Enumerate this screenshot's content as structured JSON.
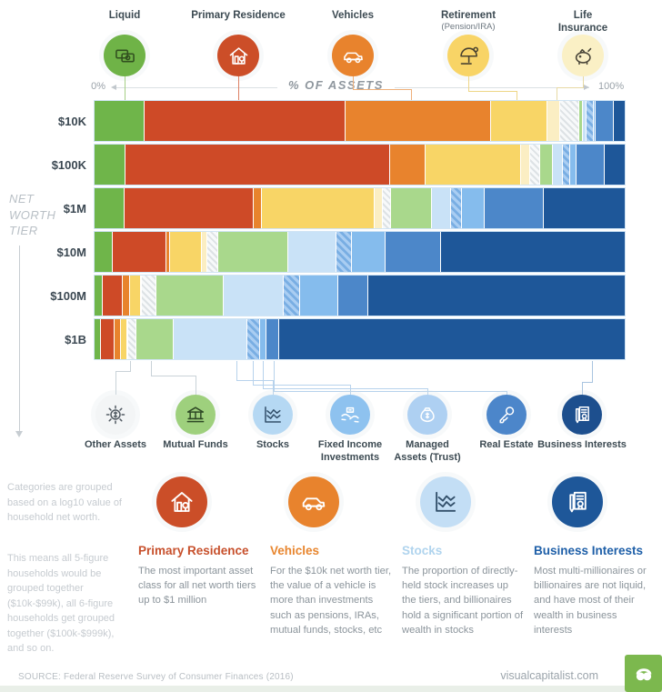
{
  "chart_data": {
    "type": "bar",
    "stacked": true,
    "orientation": "horizontal",
    "title": "% OF ASSETS",
    "ylabel": "NET WORTH TIER",
    "xlim": [
      0,
      100
    ],
    "categories": [
      "$10K",
      "$100K",
      "$1M",
      "$10M",
      "$100M",
      "$1B"
    ],
    "series": [
      {
        "name": "Liquid",
        "color": "#6fb54a",
        "values": [
          9.4,
          5.8,
          5.6,
          3.5,
          1.5,
          1.2
        ]
      },
      {
        "name": "Primary Residence",
        "color": "#ce4a27",
        "values": [
          38.0,
          49.9,
          24.4,
          10.1,
          3.8,
          2.6
        ]
      },
      {
        "name": "Vehicles",
        "color": "#e8832d",
        "values": [
          27.4,
          6.7,
          1.5,
          0.7,
          1.4,
          1.2
        ]
      },
      {
        "name": "Retirement (Pension/IRA)",
        "color": "#f8d566",
        "values": [
          10.6,
          18.0,
          21.4,
          6.0,
          2.0,
          1.2
        ]
      },
      {
        "name": "Life Insurance",
        "color": "#fbeec3",
        "values": [
          2.4,
          1.7,
          1.4,
          1.0,
          0.3,
          0.2
        ]
      },
      {
        "name": "Other Assets",
        "color": "#f2f4f6",
        "pattern": "hatch-gray",
        "values": [
          3.6,
          2.0,
          1.7,
          2.0,
          2.6,
          1.5
        ]
      },
      {
        "name": "Mutual Funds",
        "color": "#a9d88c",
        "values": [
          0.7,
          2.4,
          7.7,
          13.3,
          12.8,
          7.0
        ]
      },
      {
        "name": "Stocks",
        "color": "#c9e2f7",
        "values": [
          0.7,
          1.9,
          3.6,
          9.0,
          11.3,
          14.0
        ]
      },
      {
        "name": "Fixed Income Investments",
        "color": "#7fb2e6",
        "pattern": "hatch-blue",
        "values": [
          1.4,
          1.4,
          2.0,
          3.0,
          3.0,
          2.4
        ]
      },
      {
        "name": "Managed Assets (Trust)",
        "color": "#85bced",
        "values": [
          0.4,
          1.2,
          4.3,
          6.3,
          7.2,
          1.2
        ]
      },
      {
        "name": "Real Estate",
        "color": "#4c87c9",
        "values": [
          3.4,
          5.3,
          11.1,
          10.4,
          5.8,
          2.4
        ]
      },
      {
        "name": "Business Interests",
        "color": "#1e5799",
        "values": [
          2.0,
          3.7,
          15.3,
          34.7,
          48.3,
          65.1
        ]
      }
    ]
  },
  "axis": {
    "left": "0%",
    "center": "% OF ASSETS",
    "right": "100%"
  },
  "side": {
    "label": "NET\nWORTH\nTIER"
  },
  "top_legend": [
    {
      "label": "Liquid",
      "icon": "money-icon",
      "circle": "#6fb347",
      "stroke": "#31501f"
    },
    {
      "label": "Primary Residence",
      "icon": "house-icon",
      "circle": "#cc4e28",
      "stroke": "#ffffff"
    },
    {
      "label": "Vehicles",
      "icon": "car-icon",
      "circle": "#e8832d",
      "stroke": "#ffffff"
    },
    {
      "label": "Retirement",
      "sublabel": "(Pension/IRA)",
      "icon": "umbrella-icon",
      "circle": "#f8d466",
      "stroke": "#4a4330"
    },
    {
      "label": "Life\nInsurance",
      "icon": "piggy-icon",
      "circle": "#faf0c5",
      "stroke": "#4a4639"
    }
  ],
  "bottom_legend": [
    {
      "label": "Other Assets",
      "icon": "dollar-network-icon",
      "circle": "#f3f5f6",
      "stroke": "#525b63"
    },
    {
      "label": "Mutual Funds",
      "icon": "bank-icon",
      "circle": "#9ed07d",
      "stroke": "#2f4a26"
    },
    {
      "label": "Stocks",
      "icon": "chart-icon",
      "circle": "#b5d8f3",
      "stroke": "#33506b"
    },
    {
      "label": "Fixed Income\nInvestments",
      "icon": "hands-money-icon",
      "circle": "#8ec2ef",
      "stroke": "#ffffff"
    },
    {
      "label": "Managed\nAssets (Trust)",
      "icon": "money-bag-icon",
      "circle": "#aed0f2",
      "stroke": "#ffffff"
    },
    {
      "label": "Real Estate",
      "icon": "key-icon",
      "circle": "#4c86ca",
      "stroke": "#ffffff"
    },
    {
      "label": "Business Interests",
      "icon": "contract-icon",
      "circle": "#1d4f8e",
      "stroke": "#ffffff"
    }
  ],
  "notes": {
    "para1": "Categories are grouped based on a log10 value of household net worth.",
    "para2": "This means all 5-figure households would be grouped together ($10k-$99k), all 6-figure households get grouped together ($100k-$999k), and so on."
  },
  "callouts": [
    {
      "title": "Primary Residence",
      "title_color": "#c7502c",
      "circle": "#cb4e28",
      "stroke": "#ffffff",
      "icon": "house-icon",
      "body": "The most important asset class for all net worth tiers up to $1 million"
    },
    {
      "title": "Vehicles",
      "title_color": "#e8862f",
      "circle": "#e8832d",
      "stroke": "#ffffff",
      "icon": "car-icon",
      "body": "For the $10k net worth tier, the value of a vehicle is more than investments such as pensions, IRAs, mutual funds, stocks, etc"
    },
    {
      "title": "Stocks",
      "title_color": "#b0d4ee",
      "circle": "#c3def5",
      "stroke": "#33506b",
      "icon": "chart-icon",
      "body": "The proportion of directly-held stock increases up the tiers, and billionaires hold a significant portion of wealth in stocks"
    },
    {
      "title": "Business Interests",
      "title_color": "#1e5fa8",
      "circle": "#1e5799",
      "stroke": "#ffffff",
      "icon": "contract-icon",
      "body": "Most multi-millionaires or billionaires are not liquid, and have most of their wealth in business interests"
    }
  ],
  "footer": {
    "source": "SOURCE: Federal Reserve Survey of Consumer Finances (2016)",
    "site": "visualcapitalist.com"
  }
}
